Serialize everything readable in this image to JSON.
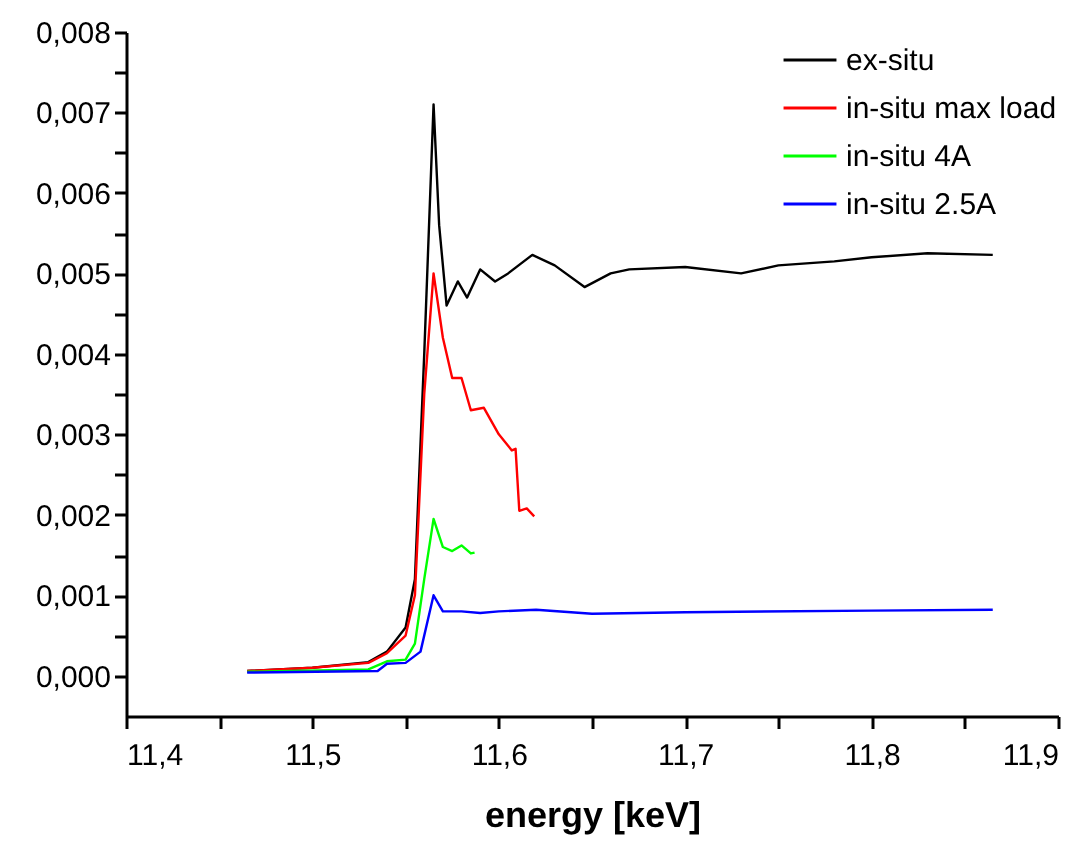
{
  "chart_data": {
    "type": "line",
    "xlabel": "energy [keV]",
    "xlim": [
      11.4,
      11.9
    ],
    "xticks": [
      {
        "value": 11.4,
        "label": "11,4"
      },
      {
        "value": 11.45,
        "label": null
      },
      {
        "value": 11.5,
        "label": "11,5"
      },
      {
        "value": 11.55,
        "label": null
      },
      {
        "value": 11.6,
        "label": "11,6"
      },
      {
        "value": 11.65,
        "label": null
      },
      {
        "value": 11.7,
        "label": "11,7"
      },
      {
        "value": 11.75,
        "label": null
      },
      {
        "value": 11.8,
        "label": "11,8"
      },
      {
        "value": 11.85,
        "label": null
      },
      {
        "value": 11.9,
        "label": "11,9"
      }
    ],
    "ylim": [
      -0.0005,
      0.008
    ],
    "yticks": [
      {
        "value": 0.0,
        "label": "0,000"
      },
      {
        "value": 0.0005,
        "label": null
      },
      {
        "value": 0.001,
        "label": "0,001"
      },
      {
        "value": 0.0015,
        "label": null
      },
      {
        "value": 0.002,
        "label": "0,002"
      },
      {
        "value": 0.0025,
        "label": null
      },
      {
        "value": 0.003,
        "label": "0,003"
      },
      {
        "value": 0.0035,
        "label": null
      },
      {
        "value": 0.004,
        "label": "0,004"
      },
      {
        "value": 0.0045,
        "label": null
      },
      {
        "value": 0.005,
        "label": "0,005"
      },
      {
        "value": 0.0055,
        "label": null
      },
      {
        "value": 0.006,
        "label": "0,006"
      },
      {
        "value": 0.0065,
        "label": null
      },
      {
        "value": 0.007,
        "label": "0,007"
      },
      {
        "value": 0.0075,
        "label": null
      },
      {
        "value": 0.008,
        "label": "0,008"
      }
    ],
    "grid": false,
    "legend": "top right",
    "marker": "none",
    "line_style": "solid",
    "series": [
      {
        "name": "ex-situ",
        "color": "#000000",
        "x": [
          11.465,
          11.5,
          11.53,
          11.54,
          11.55,
          11.555,
          11.56,
          11.565,
          11.568,
          11.572,
          11.578,
          11.583,
          11.59,
          11.598,
          11.605,
          11.618,
          11.63,
          11.646,
          11.66,
          11.67,
          11.7,
          11.73,
          11.75,
          11.78,
          11.8,
          11.83,
          11.865
        ],
        "values": [
          6e-05,
          0.0001,
          0.00017,
          0.0003,
          0.0006,
          0.0012,
          0.004,
          0.0071,
          0.0056,
          0.0046,
          0.0049,
          0.0047,
          0.00505,
          0.0049,
          0.005,
          0.00523,
          0.0051,
          0.00483,
          0.005,
          0.00505,
          0.00508,
          0.005,
          0.0051,
          0.00515,
          0.0052,
          0.00525,
          0.00523
        ]
      },
      {
        "name": "in-situ max load",
        "color": "#ff0000",
        "x": [
          11.465,
          11.5,
          11.53,
          11.54,
          11.55,
          11.555,
          11.56,
          11.565,
          11.57,
          11.575,
          11.58,
          11.585,
          11.592,
          11.6,
          11.607,
          11.609,
          11.611,
          11.615,
          11.619
        ],
        "values": [
          6e-05,
          0.0001,
          0.00016,
          0.00028,
          0.0005,
          0.001,
          0.0035,
          0.005,
          0.0042,
          0.0037,
          0.0037,
          0.0033,
          0.00333,
          0.003,
          0.0028,
          0.00282,
          0.00205,
          0.00208,
          0.00198
        ]
      },
      {
        "name": "in-situ 4A",
        "color": "#00ff00",
        "x": [
          11.465,
          11.53,
          11.54,
          11.55,
          11.555,
          11.56,
          11.565,
          11.57,
          11.575,
          11.58,
          11.585,
          11.587
        ],
        "values": [
          5e-05,
          8e-05,
          0.00018,
          0.0002,
          0.0004,
          0.0012,
          0.00195,
          0.0016,
          0.00155,
          0.00162,
          0.00152,
          0.00153
        ]
      },
      {
        "name": "in-situ 2.5A",
        "color": "#0000ff",
        "x": [
          11.465,
          11.535,
          11.54,
          11.55,
          11.558,
          11.565,
          11.57,
          11.58,
          11.59,
          11.6,
          11.62,
          11.65,
          11.7,
          11.8,
          11.865
        ],
        "values": [
          4e-05,
          6e-05,
          0.00015,
          0.00016,
          0.0003,
          0.001,
          0.0008,
          0.0008,
          0.00078,
          0.0008,
          0.00082,
          0.00077,
          0.00079,
          0.00081,
          0.00082
        ]
      }
    ]
  }
}
